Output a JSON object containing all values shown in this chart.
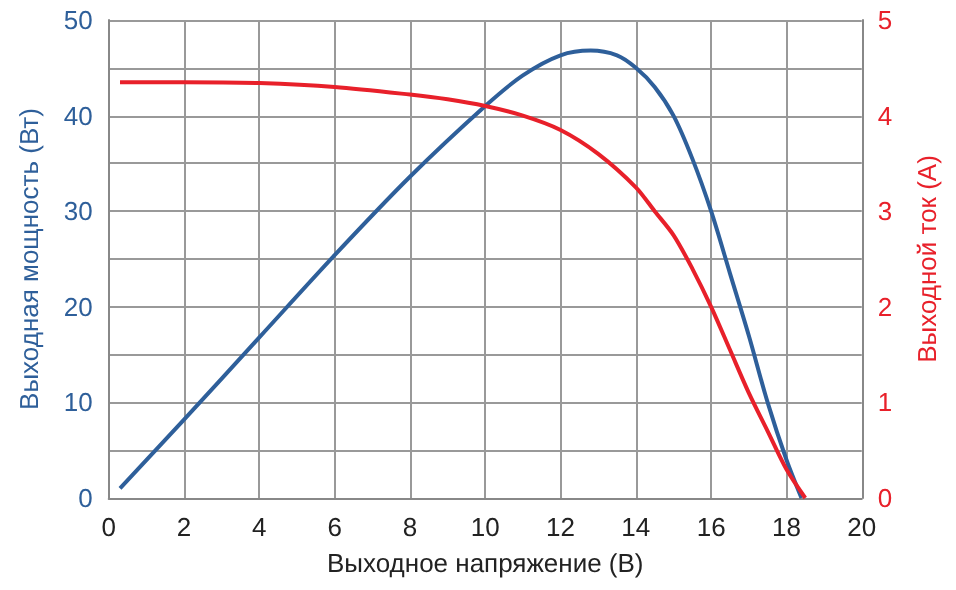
{
  "chart_data": {
    "type": "line",
    "xlabel": "Выходное напряжение (В)",
    "ylabel": "Выходная мощность (Вт)",
    "y2label": "Выходной ток (А)",
    "xlim": [
      0,
      20
    ],
    "xticks": [
      0,
      2,
      4,
      6,
      8,
      10,
      12,
      14,
      16,
      18,
      20
    ],
    "ylim": [
      0,
      50
    ],
    "yticks": [
      0,
      {
        "value": 5,
        "label": null
      },
      10,
      {
        "value": 15,
        "label": null
      },
      20,
      {
        "value": 25,
        "label": null
      },
      30,
      {
        "value": 35,
        "label": null
      },
      40,
      {
        "value": 45,
        "label": null
      },
      50
    ],
    "y2lim": [
      0,
      5
    ],
    "y2ticks": [
      0,
      1,
      2,
      3,
      4,
      5
    ],
    "grid": true,
    "marker": "none",
    "line_style": "solid",
    "series": [
      {
        "color": "#2e5f9a",
        "x": [
          0.3,
          2,
          4,
          6,
          8,
          10,
          11,
          12,
          12.8,
          13.5,
          14,
          14.5,
          15,
          15.5,
          16,
          16.5,
          17,
          17.5,
          18,
          18.4
        ],
        "values": [
          1,
          8.2,
          16.8,
          25.4,
          33.6,
          41,
          44.2,
          46.3,
          46.8,
          46.3,
          45,
          43,
          40,
          35.5,
          30,
          23.5,
          17,
          10,
          4,
          0
        ]
      },
      {
        "color": "#e8202a",
        "axis": "y2",
        "x": [
          0.3,
          2,
          4,
          6,
          8,
          9,
          10,
          11,
          12,
          13,
          14,
          14.5,
          15,
          15.5,
          16,
          16.5,
          17,
          17.5,
          18,
          18.5
        ],
        "values": [
          4.35,
          4.35,
          4.34,
          4.3,
          4.22,
          4.17,
          4.1,
          4.0,
          3.85,
          3.6,
          3.25,
          3.0,
          2.75,
          2.4,
          2.0,
          1.55,
          1.1,
          0.7,
          0.3,
          0
        ]
      }
    ]
  }
}
